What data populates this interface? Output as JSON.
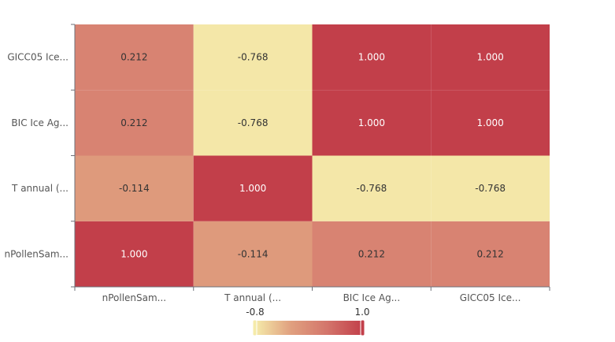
{
  "chart_data": {
    "type": "heatmap",
    "title": "",
    "x_categories": [
      "nPollenSam...",
      "T annual (...",
      "BIC Ice Ag...",
      "GICC05 Ice..."
    ],
    "y_categories": [
      "nPollenSam...",
      "T annual (...",
      "BIC Ice Ag...",
      "GICC05 Ice..."
    ],
    "values": [
      [
        "1.000",
        "-0.114",
        "0.212",
        "0.212"
      ],
      [
        "-0.114",
        "1.000",
        "-0.768",
        "-0.768"
      ],
      [
        "0.212",
        "-0.768",
        "1.000",
        "1.000"
      ],
      [
        "0.212",
        "-0.768",
        "1.000",
        "1.000"
      ]
    ],
    "visual_map": {
      "min": -0.8,
      "max": 1.0,
      "min_label": "-0.8",
      "max_label": "1.0",
      "colors": [
        "#f5ebaa",
        "#e0a07f",
        "#d4766c",
        "#c23f4a"
      ]
    },
    "grid": false,
    "legend": "bottom-center"
  }
}
